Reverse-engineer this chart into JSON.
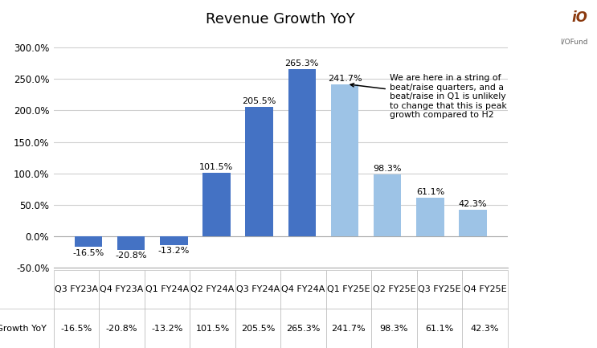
{
  "title": "Revenue Growth YoY",
  "categories": [
    "Q3 FY23A",
    "Q4 FY23A",
    "Q1 FY24A",
    "Q2 FY24A",
    "Q3 FY24A",
    "Q4 FY24A",
    "Q1 FY25E",
    "Q2 FY25E",
    "Q3 FY25E",
    "Q4 FY25E"
  ],
  "values": [
    -16.5,
    -20.8,
    -13.2,
    101.5,
    205.5,
    265.3,
    241.7,
    98.3,
    61.1,
    42.3
  ],
  "bar_colors": [
    "#4472C4",
    "#4472C4",
    "#4472C4",
    "#4472C4",
    "#4472C4",
    "#4472C4",
    "#9DC3E6",
    "#9DC3E6",
    "#9DC3E6",
    "#9DC3E6"
  ],
  "ylim": [
    -50,
    320
  ],
  "yticks": [
    -50,
    0,
    50,
    100,
    150,
    200,
    250,
    300
  ],
  "ytick_labels": [
    "-50.0%",
    "0.0%",
    "50.0%",
    "100.0%",
    "150.0%",
    "200.0%",
    "250.0%",
    "300.0%"
  ],
  "annotation_text": "We are here in a string of\nbeat/raise quarters, and a\nbeat/raise in Q1 is unlikely\nto change that this is peak\ngrowth compared to H2",
  "table_row_label": "Revenue Growth YoY",
  "table_values": [
    "-16.5%",
    "-20.8%",
    "-13.2%",
    "101.5%",
    "205.5%",
    "265.3%",
    "241.7%",
    "98.3%",
    "61.1%",
    "42.3%"
  ],
  "grid_color": "#D0D0D0",
  "label_fontsize": 8,
  "title_fontsize": 13
}
